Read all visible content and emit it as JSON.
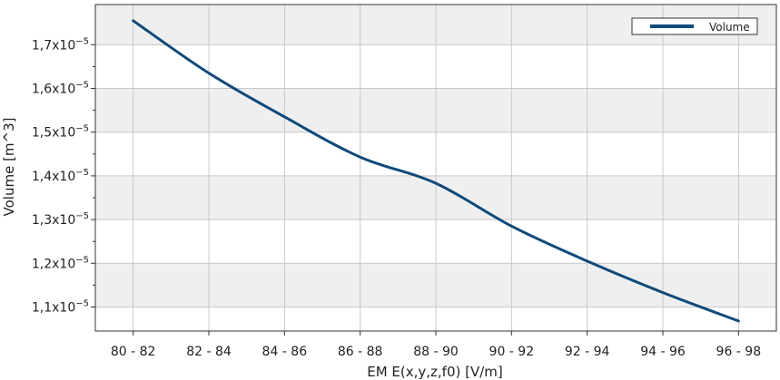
{
  "chart_data": {
    "type": "line",
    "categories": [
      "80 - 82",
      "82 - 84",
      "84 - 86",
      "86 - 88",
      "88 - 90",
      "90 - 92",
      "92 - 94",
      "94 - 96",
      "96 - 98"
    ],
    "series": [
      {
        "name": "Volume",
        "color": "#0e4a7b",
        "values": [
          1.755e-05,
          1.635e-05,
          1.535e-05,
          1.443e-05,
          1.383e-05,
          1.285e-05,
          1.205e-05,
          1.133e-05,
          1.068e-05
        ]
      }
    ],
    "xlabel": "EM E(x,y,z,f0) [V/m]",
    "ylabel": "Volume [m^3]",
    "ylim": [
      1.045e-05,
      1.792e-05
    ],
    "yticks": [
      {
        "value": 1.1e-05,
        "mantissa": "1,1x10",
        "exp": "−5"
      },
      {
        "value": 1.2e-05,
        "mantissa": "1,2x10",
        "exp": "−5"
      },
      {
        "value": 1.3e-05,
        "mantissa": "1,3x10",
        "exp": "−5"
      },
      {
        "value": 1.4e-05,
        "mantissa": "1,4x10",
        "exp": "−5"
      },
      {
        "value": 1.5e-05,
        "mantissa": "1,5x10",
        "exp": "−5"
      },
      {
        "value": 1.6e-05,
        "mantissa": "1,6x10",
        "exp": "−5"
      },
      {
        "value": 1.7e-05,
        "mantissa": "1,7x10",
        "exp": "−5"
      }
    ],
    "grid": true,
    "legend_position": "top-right",
    "band_color": "#efefef"
  }
}
